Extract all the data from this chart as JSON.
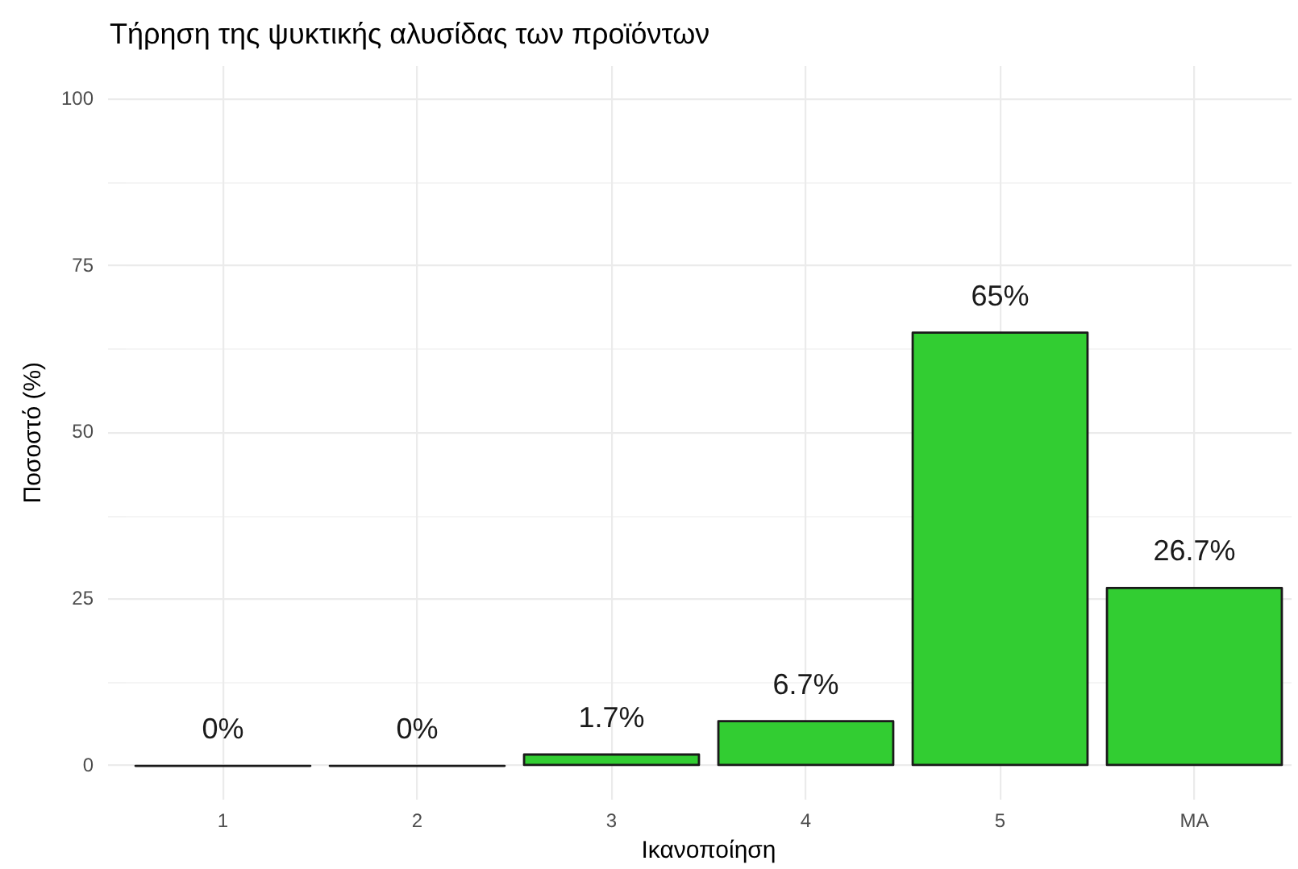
{
  "chart_data": {
    "type": "bar",
    "title": "Τήρηση της ψυκτικής αλυσίδας των προϊόντων",
    "xlabel": "Ικανοποίηση",
    "ylabel": "Ποσοστό (%)",
    "categories": [
      "1",
      "2",
      "3",
      "4",
      "5",
      "ΜΑ"
    ],
    "values": [
      0,
      0,
      1.7,
      6.7,
      65,
      26.7
    ],
    "value_labels": [
      "0%",
      "0%",
      "1.7%",
      "6.7%",
      "65%",
      "26.7%"
    ],
    "color": "#32cd32",
    "ylim": [
      -5,
      105
    ],
    "yticks": [
      0,
      {
        "value": 12.5,
        "label": null
      },
      25,
      {
        "value": 37.5,
        "label": null
      },
      50,
      {
        "value": 62.5,
        "label": null
      },
      75,
      {
        "value": 87.5,
        "label": null
      },
      100
    ],
    "grid": true
  }
}
